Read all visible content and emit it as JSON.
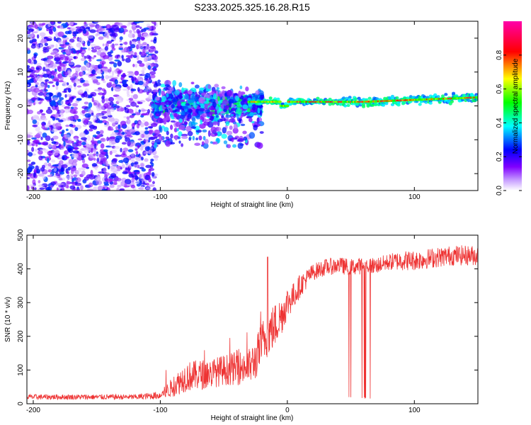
{
  "figure_title": "S233.2025.325.16.28.R15",
  "colors": {
    "snr_line": "#ee3333",
    "axis": "#000000",
    "background": "#ffffff"
  },
  "chart_data": [
    {
      "type": "heatmap",
      "title": "S233.2025.325.16.28.R15",
      "xlabel": "Height of straight line (km)",
      "ylabel": "Frequency (Hz)",
      "xlim": [
        -205,
        150
      ],
      "ylim": [
        -25,
        25
      ],
      "xticks": [
        -200,
        -100,
        0,
        100
      ],
      "yticks": [
        -20,
        -10,
        0,
        10,
        20
      ],
      "colorbar": {
        "label": "Normalized spectral amplitude",
        "range": [
          0,
          1
        ],
        "ticks": [
          "0.0",
          "0.2",
          "0.4",
          "0.6",
          "0.8"
        ],
        "colormap": [
          "#ffffff",
          "#8000ff",
          "#0000ff",
          "#00ffff",
          "#00ff00",
          "#ffff00",
          "#ff0000",
          "#ff00aa"
        ]
      },
      "regions": [
        {
          "x_range": [
            -205,
            -105
          ],
          "freq_range": [
            -25,
            25
          ],
          "amplitude": "low (0.05-0.2), broadband noise"
        },
        {
          "x_range": [
            -105,
            -25
          ],
          "freq_range": [
            -8,
            6
          ],
          "amplitude": "0.1-0.4, scattered"
        },
        {
          "x_range": [
            -25,
            150
          ],
          "freq_range": [
            0,
            3
          ],
          "amplitude": "0.6-1.0, narrow carrier line near 1-2 Hz"
        }
      ]
    },
    {
      "type": "line",
      "xlabel": "Height of straight line (km)",
      "ylabel": "SNR (10 * v/v)",
      "xlim": [
        -205,
        150
      ],
      "ylim": [
        0,
        500
      ],
      "xticks": [
        -200,
        -100,
        0,
        100
      ],
      "yticks": [
        0,
        100,
        200,
        300,
        400,
        500
      ],
      "series": [
        {
          "name": "SNR",
          "x": [
            -205,
            -180,
            -150,
            -120,
            -100,
            -90,
            -80,
            -70,
            -60,
            -50,
            -40,
            -30,
            -25,
            -20,
            -15,
            -10,
            -5,
            0,
            5,
            10,
            20,
            30,
            40,
            50,
            60,
            70,
            80,
            90,
            100,
            110,
            120,
            130,
            140,
            150
          ],
          "values": [
            20,
            20,
            20,
            20,
            25,
            50,
            80,
            85,
            90,
            100,
            105,
            110,
            130,
            180,
            210,
            230,
            260,
            300,
            320,
            350,
            390,
            405,
            410,
            405,
            410,
            410,
            420,
            425,
            425,
            430,
            435,
            440,
            440,
            440
          ],
          "noise_amplitude": [
            8,
            8,
            8,
            8,
            12,
            30,
            45,
            45,
            45,
            45,
            50,
            55,
            60,
            70,
            70,
            70,
            60,
            50,
            40,
            35,
            25,
            25,
            25,
            25,
            25,
            25,
            25,
            30,
            30,
            30,
            30,
            30,
            30,
            30
          ]
        }
      ],
      "annotations": [
        {
          "text": "dropouts to ~15",
          "x_range": [
            42,
            70
          ]
        },
        {
          "text": "spike to ~435",
          "x": -15
        }
      ]
    }
  ]
}
